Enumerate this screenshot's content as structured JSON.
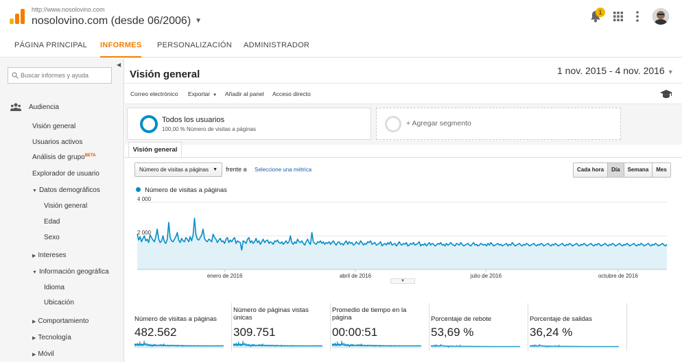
{
  "header": {
    "site_url": "http://www.nosolovino.com",
    "property": "nosolovino.com (desde 06/2006)",
    "notification_count": "1",
    "accent": "#f57c00"
  },
  "nav": {
    "tabs": [
      {
        "label": "PÁGINA PRINCIPAL",
        "active": false
      },
      {
        "label": "INFORMES",
        "active": true
      },
      {
        "label": "PERSONALIZACIÓN",
        "active": false
      },
      {
        "label": "ADMINISTRADOR",
        "active": false
      }
    ]
  },
  "sidebar": {
    "search_placeholder": "Buscar informes y ayuda",
    "section": "Audiencia",
    "items": [
      {
        "label": "Visión general"
      },
      {
        "label": "Usuarios activos"
      },
      {
        "label": "Análisis de grupo",
        "badge": "BETA"
      },
      {
        "label": "Explorador de usuario"
      },
      {
        "label": "Datos demográficos"
      },
      {
        "label": "Visión general"
      },
      {
        "label": "Edad"
      },
      {
        "label": "Sexo"
      },
      {
        "label": "Intereses"
      },
      {
        "label": "Información geográfica"
      },
      {
        "label": "Idioma"
      },
      {
        "label": "Ubicación"
      },
      {
        "label": "Comportamiento"
      },
      {
        "label": "Tecnología"
      },
      {
        "label": "Móvil"
      }
    ]
  },
  "main": {
    "title": "Visión general",
    "date_range": "1 nov. 2015 - 4 nov. 2016",
    "actions": [
      {
        "label": "Correo electrónico"
      },
      {
        "label": "Exportar",
        "dropdown": true
      },
      {
        "label": "Añadir al panel"
      },
      {
        "label": "Acceso directo"
      }
    ],
    "segments": {
      "active_title": "Todos los usuarios",
      "active_sub": "100,00 % Número de visitas a páginas",
      "add_label": "+ Agregar segmento"
    },
    "view_tab": "Visión general",
    "metric_select": "Número de visitas a páginas",
    "versus_label": "frente a",
    "select_metric_link": "Seleccione una métrica",
    "granularity": [
      {
        "label": "Cada hora",
        "on": false
      },
      {
        "label": "Día",
        "on": true
      },
      {
        "label": "Semana",
        "on": false
      },
      {
        "label": "Mes",
        "on": false
      }
    ],
    "scorecards": [
      {
        "label": "Número de visitas a páginas",
        "value": "482.562"
      },
      {
        "label": "Número de páginas vistas únicas",
        "value": "309.751"
      },
      {
        "label": "Promedio de tiempo en la página",
        "value": "00:00:51"
      },
      {
        "label": "Porcentaje de rebote",
        "value": "53,69 %"
      },
      {
        "label": "Porcentaje de salidas",
        "value": "36,24 %"
      }
    ]
  },
  "chart_data": {
    "type": "area",
    "series": [
      {
        "name": "Número de visitas a páginas",
        "color": "#058dc7"
      }
    ],
    "x_tick_labels": [
      "enero de 2016",
      "abril de 2016",
      "julio de 2016",
      "octubre de 2016"
    ],
    "y_tick_labels": [
      "4 000",
      "2 000"
    ],
    "ylim": [
      0,
      4000
    ],
    "grid": true,
    "x_range": [
      "2015-11-01",
      "2016-11-04"
    ],
    "values": [
      2100,
      1750,
      1950,
      1650,
      1850,
      2000,
      1700,
      1800,
      1600,
      2050,
      1900,
      1750,
      1650,
      1950,
      2400,
      1800,
      1600,
      1700,
      2000,
      1650,
      1550,
      1800,
      2800,
      1900,
      1700,
      1650,
      1800,
      1950,
      2200,
      1750,
      1600,
      1850,
      1700,
      1650,
      1900,
      1800,
      1650,
      1950,
      1700,
      2050,
      3050,
      2100,
      1800,
      1750,
      1900,
      2050,
      2400,
      1850,
      1700,
      1650,
      1800,
      1750,
      1650,
      2100,
      1900,
      1800,
      1600,
      1750,
      1850,
      1650,
      1700,
      1550,
      1800,
      1900,
      1600,
      1750,
      1650,
      1800,
      1900,
      1550,
      1700,
      1650,
      1600,
      1150,
      1700,
      1650,
      1550,
      1800,
      1900,
      1600,
      1700,
      1550,
      1650,
      1850,
      1600,
      1700,
      1500,
      1650,
      1800,
      1600,
      1700,
      1750,
      1550,
      1650,
      1600,
      1500,
      1700,
      1650,
      1750,
      1600,
      1550,
      1650,
      1500,
      1600,
      1700,
      1550,
      1650,
      2000,
      1600,
      1500,
      1650,
      1550,
      1800,
      1650,
      1600,
      1700,
      1550,
      1450,
      1650,
      1800,
      1600,
      1500,
      2200,
      1650,
      1550,
      1500,
      1650,
      1600,
      1700,
      1550,
      1650,
      1500,
      1600,
      1550,
      1650,
      1500,
      1600,
      1700,
      1550,
      1450,
      1600,
      1650,
      1500,
      1550,
      1450,
      1600,
      1700,
      1500,
      1650,
      1550,
      1600,
      1450,
      1500,
      1650,
      1550,
      1500,
      1700,
      1600,
      1450,
      1550,
      1500,
      1650,
      1600,
      1700,
      1500,
      1550,
      1600,
      1450,
      1500,
      1550,
      1650,
      1400,
      1500,
      1550,
      1450,
      1600,
      1500,
      1650,
      1450,
      1500,
      1550,
      1400,
      1500,
      1650,
      1500,
      1450,
      1550,
      1500,
      1600,
      1400,
      1450,
      1550,
      1500,
      1600,
      1450,
      1500,
      1550,
      1650,
      1400,
      1500,
      1450,
      1550,
      1400,
      1500,
      1600,
      1450,
      1550,
      1500,
      1400,
      1450,
      1550,
      1500,
      1600,
      1450,
      1500,
      1400,
      1550,
      1450,
      1500,
      1600,
      1500,
      1450,
      1400,
      1550,
      1500,
      1450,
      1600,
      1500,
      1400,
      1450,
      1500,
      1550,
      1450,
      1400,
      1500,
      1600,
      1450,
      1500,
      1400,
      1450,
      1550,
      1500,
      1450,
      1500,
      1400,
      1550,
      1450,
      1600,
      1500,
      1400,
      1450,
      1500,
      1550,
      1450,
      1500,
      1400,
      1450,
      1500,
      1550,
      1400,
      1500,
      1450,
      1600,
      1500,
      1400,
      1450,
      1500,
      1550,
      1450,
      1400,
      1500,
      1450,
      1550,
      1500,
      1400,
      1450,
      1500,
      1550,
      1450,
      1400,
      1500,
      1450,
      1550,
      1500,
      1400,
      1450,
      1500,
      1550,
      1450,
      1400,
      1500,
      1450,
      1550,
      1500,
      1400,
      1450,
      1500,
      1550,
      1450,
      1400,
      1500,
      1450,
      1550,
      1500,
      1400,
      1450,
      1500,
      1550,
      1450,
      1400,
      1500,
      1450,
      1550,
      1500,
      1400,
      1450,
      1500,
      1550,
      1450,
      1400,
      1500,
      1450,
      1550,
      1500,
      1400,
      1450,
      1500,
      1550,
      1450,
      1400,
      1500,
      1450,
      1550,
      1500,
      1400,
      1450,
      1500,
      1550,
      1450,
      1400,
      1500,
      1450,
      1550,
      1500,
      1400,
      1450,
      1500,
      1550,
      1450,
      1400,
      1500,
      1450,
      1550,
      1500,
      1400,
      1450,
      1500,
      1550,
      1450,
      1400,
      1500,
      1450,
      1550,
      1500,
      1400,
      1450,
      1500,
      1550,
      1450,
      1400,
      1500
    ]
  }
}
